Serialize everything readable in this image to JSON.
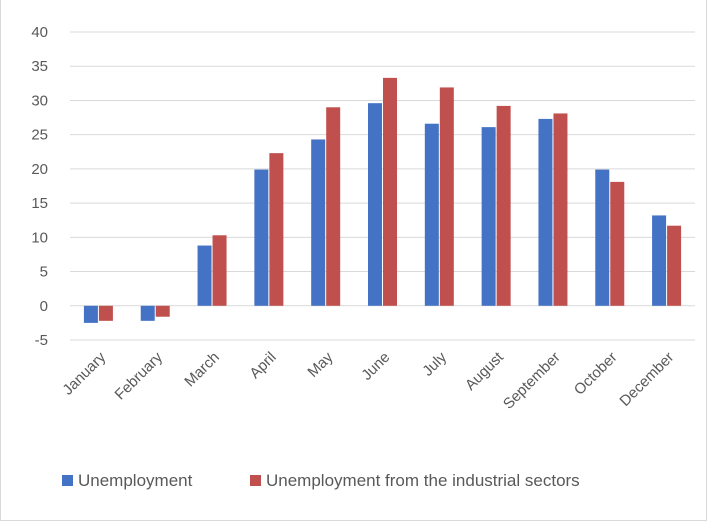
{
  "chart_data": {
    "type": "bar",
    "title": "",
    "xlabel": "",
    "ylabel": "",
    "ylim": [
      -5,
      40
    ],
    "y_ticks": [
      "40",
      "35",
      "30",
      "25",
      "20",
      "15",
      "10",
      "5",
      "0",
      "-5"
    ],
    "grid": "horizontal",
    "legend_position": "bottom",
    "categories": [
      "January",
      "February",
      "March",
      "April",
      "May",
      "June",
      "July",
      "August",
      "September",
      "October",
      "December"
    ],
    "series": [
      {
        "name": "Unemployment",
        "color": "#4472C4",
        "values": [
          -2.5,
          -2.2,
          8.8,
          19.9,
          24.3,
          29.6,
          26.6,
          26.1,
          27.3,
          19.9,
          13.2
        ]
      },
      {
        "name": "Unemployment from the industrial sectors",
        "color": "#C0504D",
        "values": [
          -2.2,
          -1.6,
          10.3,
          22.3,
          29.0,
          33.3,
          31.9,
          29.2,
          28.1,
          18.1,
          11.7
        ]
      }
    ]
  }
}
